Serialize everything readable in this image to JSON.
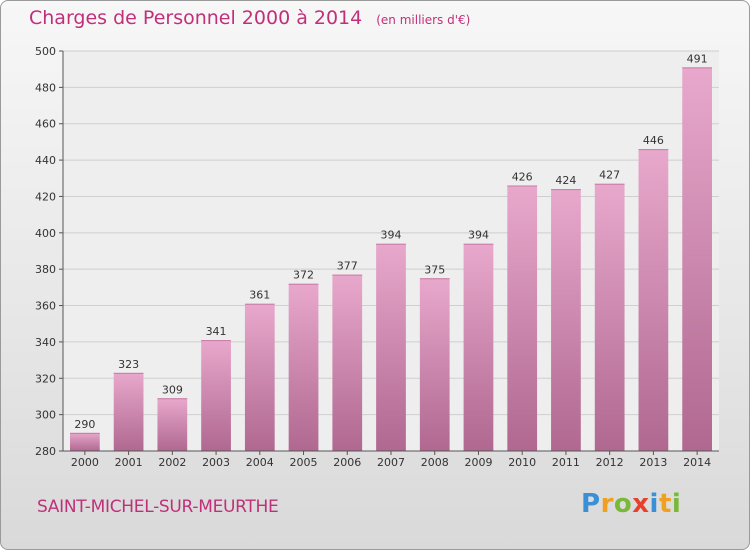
{
  "title": "Charges de Personnel 2000 à 2014",
  "subtitle": "(en milliers d'€)",
  "commune": "SAINT-MICHEL-SUR-MEURTHE",
  "logo": {
    "text": "Proxiti",
    "letters": [
      {
        "ch": "P",
        "color": "#3a8fd6"
      },
      {
        "ch": "r",
        "color": "#f0a020"
      },
      {
        "ch": "o",
        "color": "#7ab83a"
      },
      {
        "ch": "x",
        "color": "#e8402a"
      },
      {
        "ch": "i",
        "color": "#3a8fd6"
      },
      {
        "ch": "t",
        "color": "#f0a020"
      },
      {
        "ch": "i",
        "color": "#7ab83a"
      }
    ]
  },
  "colors": {
    "accent": "#c0307a",
    "bar_top": "#e8a8cc",
    "bar_bottom": "#b06890"
  },
  "chart_data": {
    "type": "bar",
    "categories": [
      "2000",
      "2001",
      "2002",
      "2003",
      "2004",
      "2005",
      "2006",
      "2007",
      "2008",
      "2009",
      "2010",
      "2011",
      "2012",
      "2013",
      "2014"
    ],
    "values": [
      290,
      323,
      309,
      341,
      361,
      372,
      377,
      394,
      375,
      394,
      426,
      424,
      427,
      446,
      491
    ],
    "ylim": [
      280,
      500
    ],
    "yticks": [
      280,
      300,
      320,
      340,
      360,
      380,
      400,
      420,
      440,
      460,
      480,
      500
    ],
    "grid": true
  }
}
